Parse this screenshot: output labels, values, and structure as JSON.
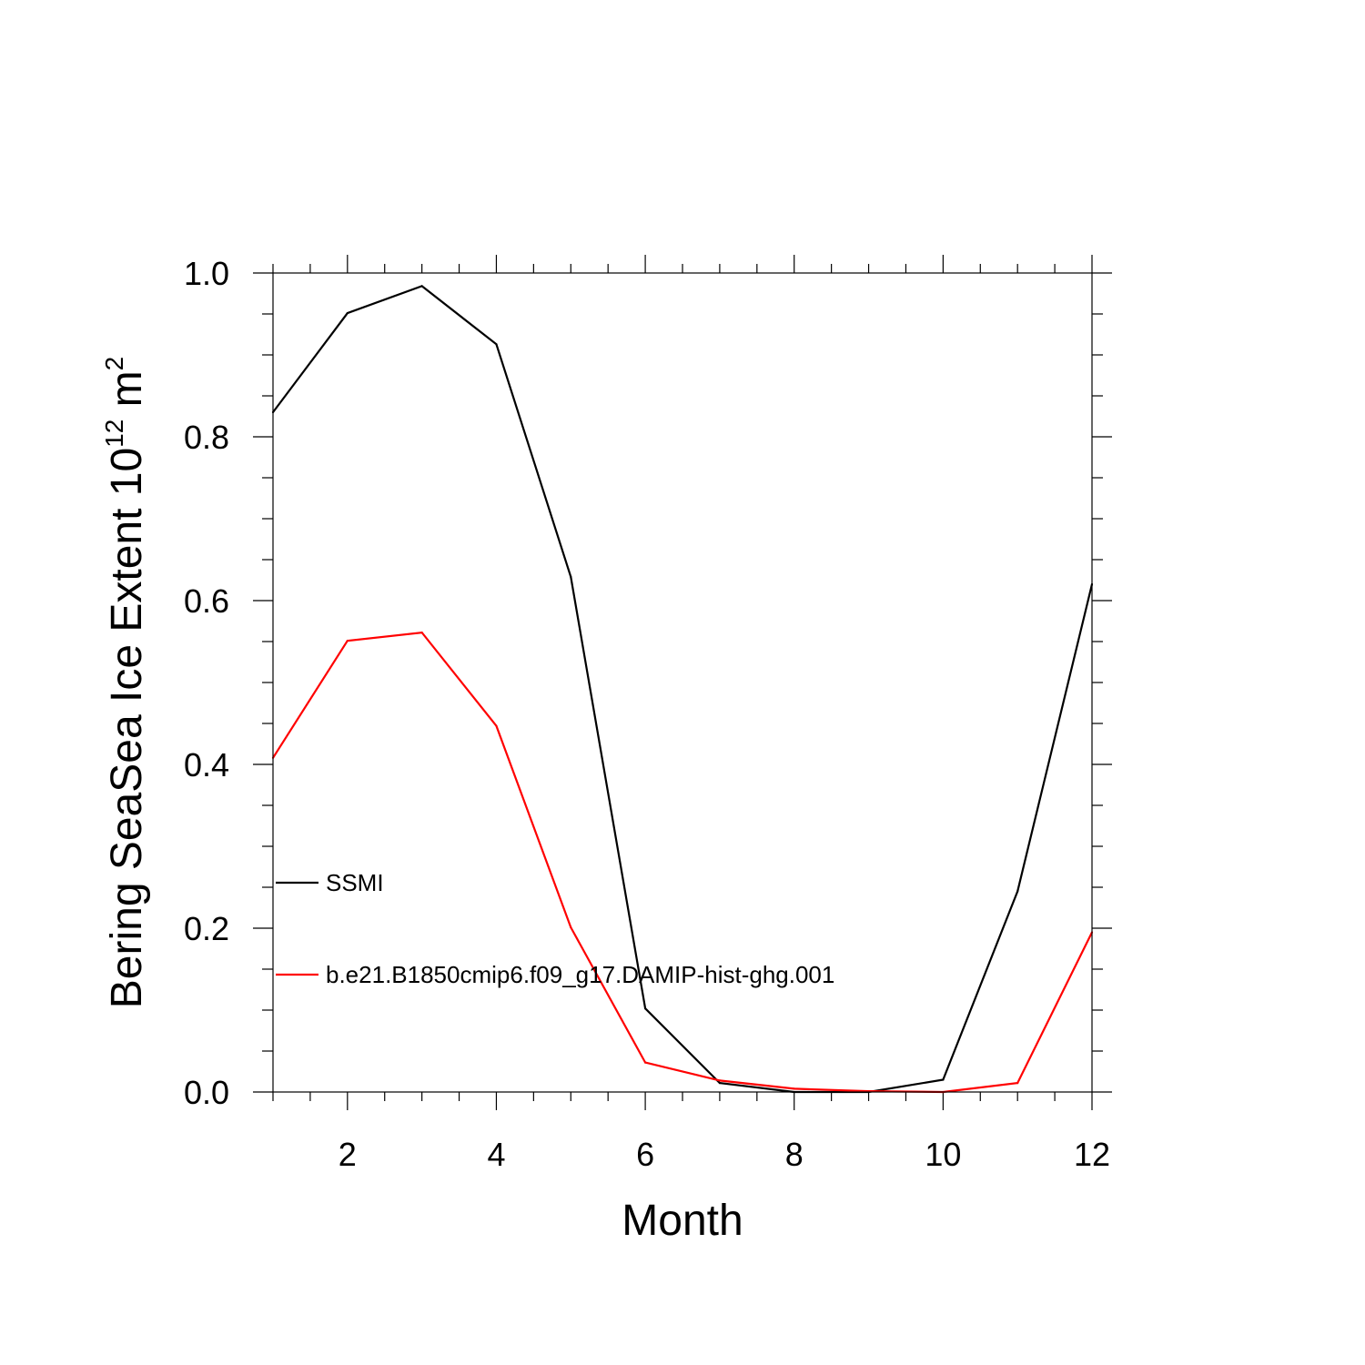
{
  "chart_data": {
    "type": "line",
    "title": "",
    "xlabel": "Month",
    "ylabel": {
      "prefix": "Bering SeaSea Ice Extent 10",
      "exponent": "12",
      "middle": " m",
      "unit_exponent": "2"
    },
    "xlim": [
      1,
      12
    ],
    "ylim": [
      0,
      1
    ],
    "x_ticks": [
      2,
      4,
      6,
      8,
      10,
      12
    ],
    "x_tick_labels": [
      "2",
      "4",
      "6",
      "8",
      "10",
      "12"
    ],
    "y_ticks": [
      0,
      0.2,
      0.4,
      0.6,
      0.8,
      1.0
    ],
    "y_tick_labels": [
      "0.0",
      "0.2",
      "0.4",
      "0.6",
      "0.8",
      "1.0"
    ],
    "grid": false,
    "legend_position": "left",
    "x": [
      1,
      2,
      3,
      4,
      5,
      6,
      7,
      8,
      9,
      10,
      11,
      12
    ],
    "series": [
      {
        "name": "SSMI",
        "color": "#000000",
        "values": [
          0.83,
          0.951,
          0.984,
          0.913,
          0.629,
          0.102,
          0.011,
          0.0,
          0.0,
          0.015,
          0.245,
          0.62
        ]
      },
      {
        "name": "b.e21.B1850cmip6.f09_g17.DAMIP-hist-ghg.001",
        "color": "#ff0000",
        "values": [
          0.408,
          0.551,
          0.561,
          0.447,
          0.201,
          0.036,
          0.014,
          0.004,
          0.001,
          0.0,
          0.011,
          0.195
        ]
      }
    ]
  }
}
